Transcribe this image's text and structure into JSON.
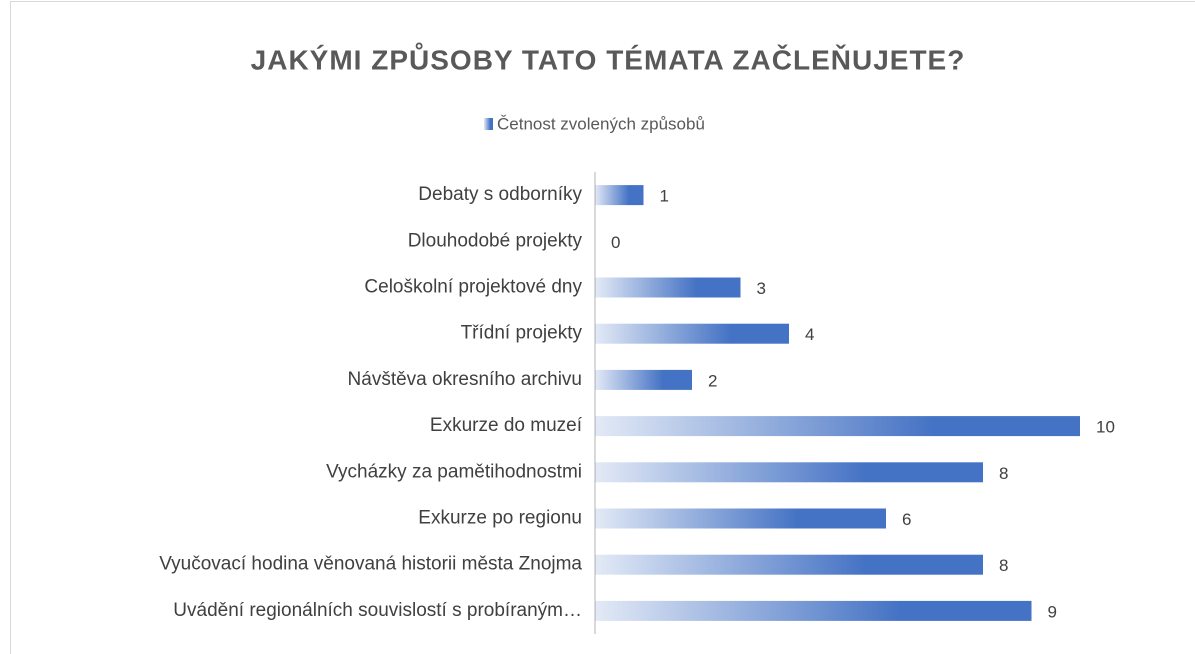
{
  "chart_data": {
    "type": "bar",
    "orientation": "horizontal",
    "title": "JAKÝMI ZPŮSOBY TATO TÉMATA ZAČLEŇUJETE?",
    "categories": [
      "Debaty s odborníky",
      "Dlouhodobé projekty",
      "Celoškolní projektové dny",
      "Třídní projekty",
      "Návštěva okresního archivu",
      "Exkurze do muzeí",
      "Vycházky za pamětihodnostmi",
      "Exkurze po regionu",
      "Vyučovací hodina věnovaná historii města Znojma",
      "Uvádění regionálních souvislostí s probíraným…"
    ],
    "series": [
      {
        "name": "Četnost zvolených způsobů",
        "color": "#4472c4",
        "values": [
          1,
          0,
          3,
          4,
          2,
          10,
          8,
          6,
          8,
          9
        ]
      }
    ],
    "xlim": [
      0,
      12
    ],
    "legend": "top"
  }
}
